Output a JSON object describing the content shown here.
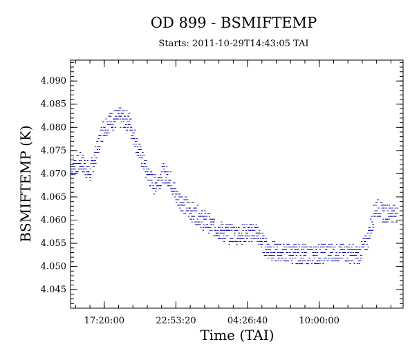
{
  "chart_data": {
    "type": "line",
    "title": "OD 899 - BSMIFTEMP",
    "subtitle": "Starts: 2011-10-29T14:43:05 TAI",
    "xlabel": "Time (TAI)",
    "ylabel": "BSMIFTEMP (K)",
    "x_ticks": [
      {
        "value": "2011-10-29T17:20:00",
        "label": "17:20:00"
      },
      {
        "value": "2011-10-29T22:53:20",
        "label": "22:53:20"
      },
      {
        "value": "2011-10-30T04:26:40",
        "label": "04:26:40"
      },
      {
        "value": "2011-10-30T10:00:00",
        "label": "10:00:00"
      }
    ],
    "xlim": [
      "2011-10-29T14:43:05",
      "2011-10-30T16:30:00"
    ],
    "ylim": [
      4.041,
      4.0945
    ],
    "y_ticks": [
      "4.045",
      "4.050",
      "4.055",
      "4.060",
      "4.065",
      "4.070",
      "4.075",
      "4.080",
      "4.085",
      "4.090"
    ],
    "grid": false,
    "colors": {
      "series": "#0000aa",
      "axes": "#000000",
      "background": "#ffffff"
    },
    "series": [
      {
        "style": "quantized dotted levels (approximate trend)",
        "points": [
          {
            "x": "2011-10-29T14:43:05",
            "y": 4.0715
          },
          {
            "x": "2011-10-29T15:30:00",
            "y": 4.0725
          },
          {
            "x": "2011-10-29T16:10:00",
            "y": 4.07
          },
          {
            "x": "2011-10-29T16:40:00",
            "y": 4.0745
          },
          {
            "x": "2011-10-29T17:10:00",
            "y": 4.0795
          },
          {
            "x": "2011-10-29T17:45:00",
            "y": 4.0815
          },
          {
            "x": "2011-10-29T18:30:00",
            "y": 4.082
          },
          {
            "x": "2011-10-29T19:10:00",
            "y": 4.0815
          },
          {
            "x": "2011-10-29T19:50:00",
            "y": 4.076
          },
          {
            "x": "2011-10-29T20:30:00",
            "y": 4.071
          },
          {
            "x": "2011-10-29T21:10:00",
            "y": 4.0675
          },
          {
            "x": "2011-10-29T21:50:00",
            "y": 4.07
          },
          {
            "x": "2011-10-29T22:20:00",
            "y": 4.069
          },
          {
            "x": "2011-10-29T22:53:20",
            "y": 4.065
          },
          {
            "x": "2011-10-30T00:00:00",
            "y": 4.062
          },
          {
            "x": "2011-10-30T01:00:00",
            "y": 4.06
          },
          {
            "x": "2011-10-30T02:00:00",
            "y": 4.058
          },
          {
            "x": "2011-10-30T03:00:00",
            "y": 4.057
          },
          {
            "x": "2011-10-30T04:00:00",
            "y": 4.057
          },
          {
            "x": "2011-10-30T05:00:00",
            "y": 4.0575
          },
          {
            "x": "2011-10-30T05:40:00",
            "y": 4.0545
          },
          {
            "x": "2011-10-30T06:30:00",
            "y": 4.053
          },
          {
            "x": "2011-10-30T07:30:00",
            "y": 4.053
          },
          {
            "x": "2011-10-30T08:30:00",
            "y": 4.0525
          },
          {
            "x": "2011-10-30T09:30:00",
            "y": 4.0525
          },
          {
            "x": "2011-10-30T10:30:00",
            "y": 4.053
          },
          {
            "x": "2011-10-30T11:30:00",
            "y": 4.053
          },
          {
            "x": "2011-10-30T13:00:00",
            "y": 4.0525
          },
          {
            "x": "2011-10-30T13:40:00",
            "y": 4.0555
          },
          {
            "x": "2011-10-30T14:20:00",
            "y": 4.063
          },
          {
            "x": "2011-10-30T15:00:00",
            "y": 4.0615
          },
          {
            "x": "2011-10-30T16:00:00",
            "y": 4.0615
          }
        ]
      }
    ]
  }
}
